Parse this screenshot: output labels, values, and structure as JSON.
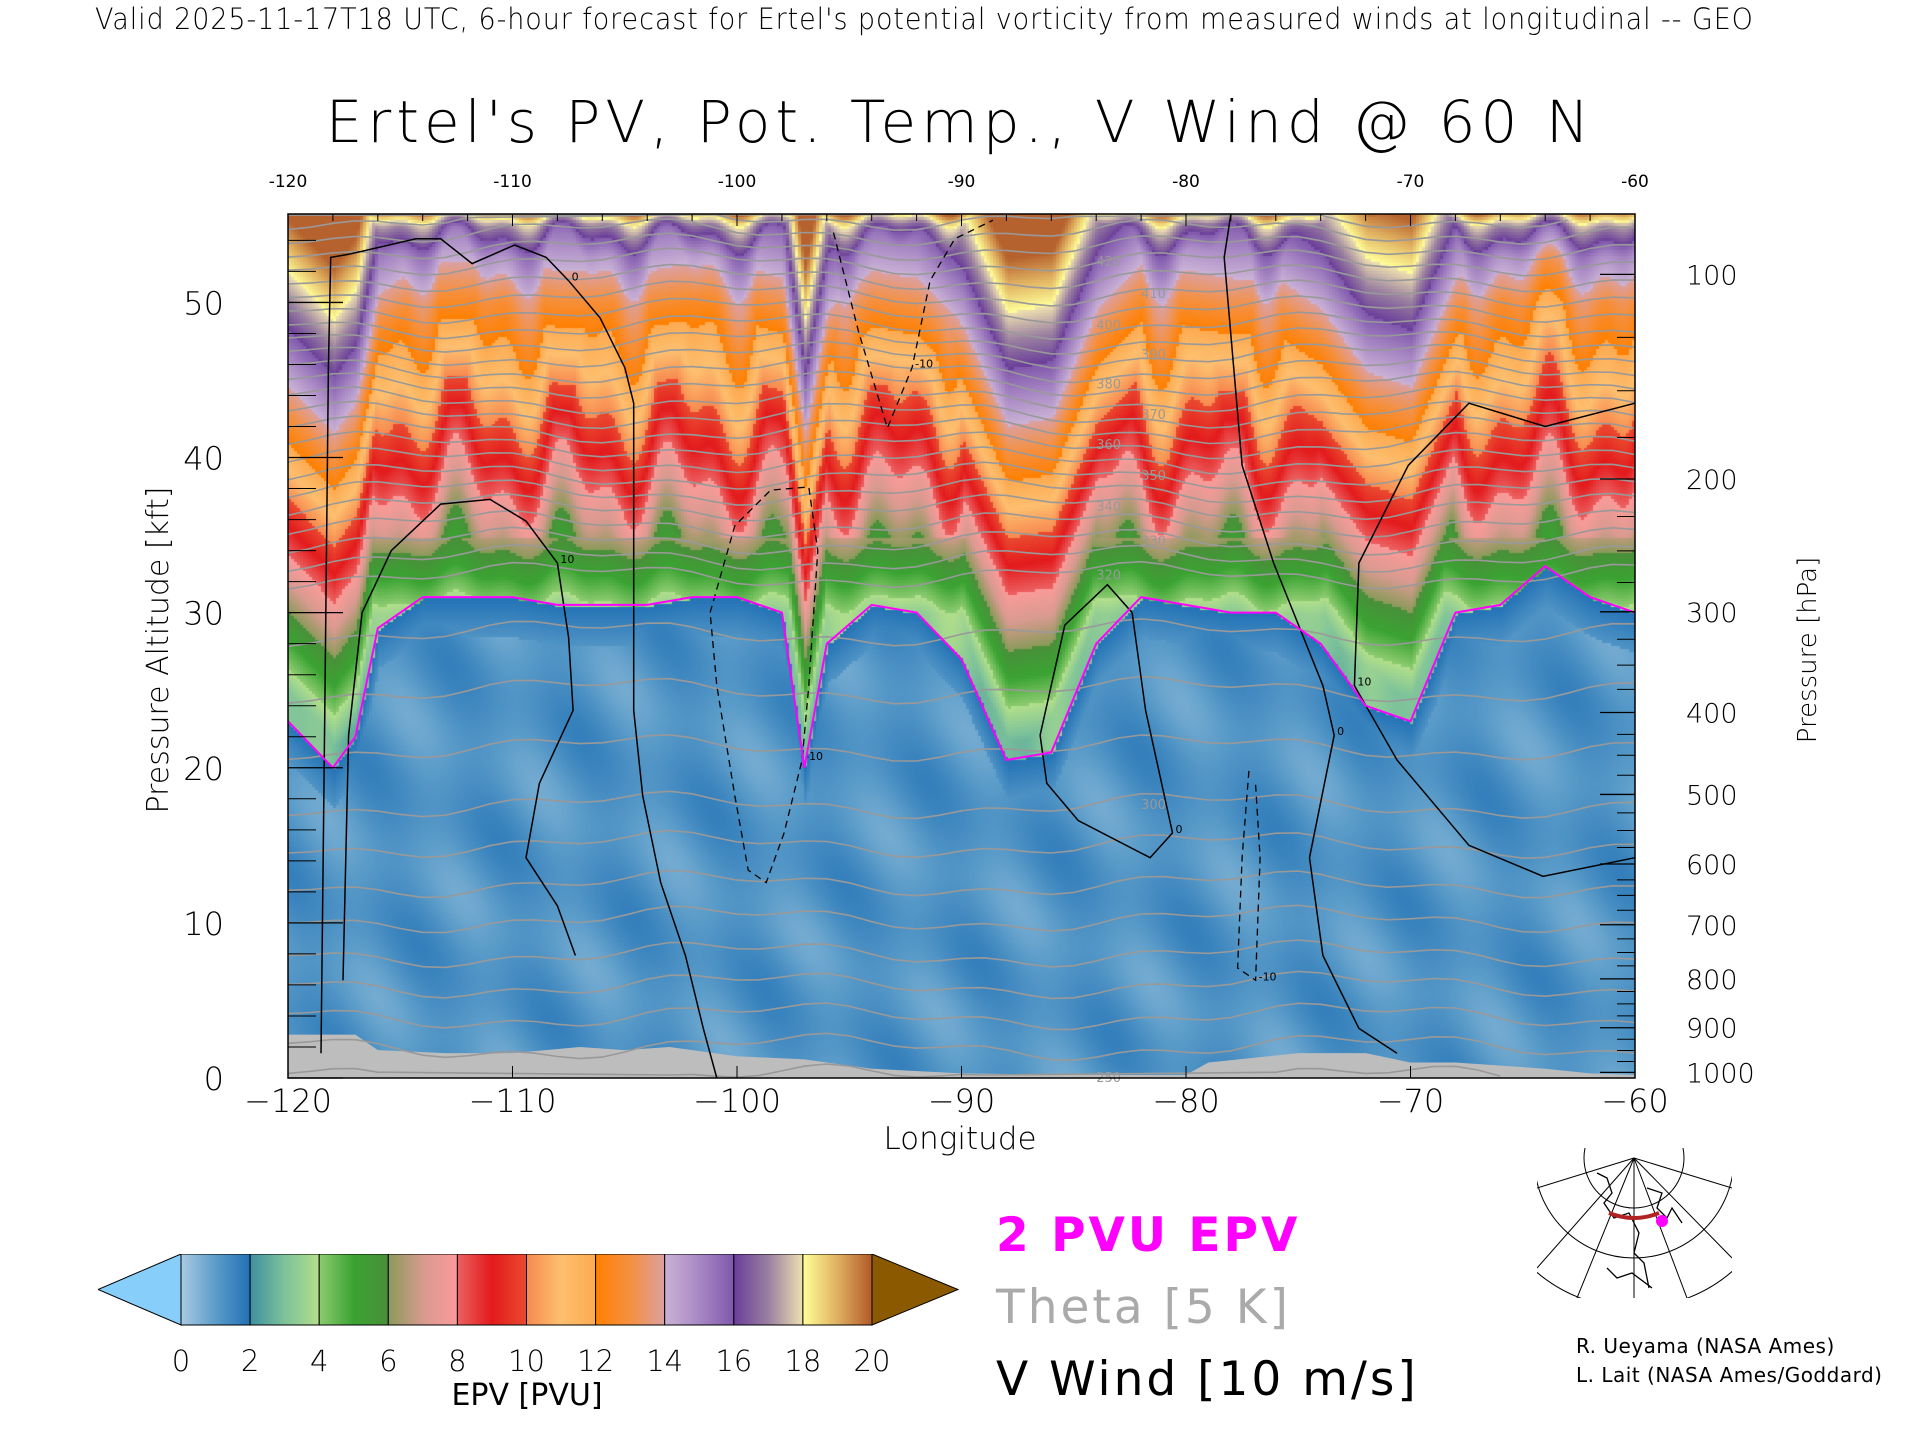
{
  "header": {
    "valid_line": "Valid 2025-11-17T18 UTC, 6-hour forecast for Ertel's potential vorticity from measured winds at longitudinal -- GEO",
    "title": "Ertel's PV, Pot. Temp., V Wind @ 60 N"
  },
  "chart_data": {
    "type": "heatmap",
    "title": "Ertel's PV, Pot. Temp., V Wind @ 60 N",
    "xlabel": "Longitude",
    "ylabel": "Pressure Altitude [kft]",
    "y2label": "Pressure [hPa]",
    "xlim": [
      -120,
      -60
    ],
    "ylim": [
      0,
      55.7
    ],
    "x_ticks": [
      "-120",
      "-110",
      "-100",
      "-90",
      "-80",
      "-70",
      "-60"
    ],
    "x_tick_values": [
      -120,
      -110,
      -100,
      -90,
      -80,
      -70,
      -60
    ],
    "y_ticks": [
      "0",
      "10",
      "20",
      "30",
      "40",
      "50"
    ],
    "y_tick_values": [
      0,
      10,
      20,
      30,
      40,
      50
    ],
    "pressure_ticks": [
      "100",
      "200",
      "300",
      "400",
      "500",
      "600",
      "700",
      "800",
      "900",
      "1000"
    ],
    "pressure_tick_values": [
      100,
      200,
      300,
      400,
      500,
      600,
      700,
      800,
      900,
      1000
    ],
    "epv_colorbar": {
      "label": "EPV [PVU]",
      "ticks": [
        "0",
        "2",
        "4",
        "6",
        "8",
        "10",
        "12",
        "14",
        "16",
        "18",
        "20"
      ],
      "under_color": "#87cefa",
      "over_color": "#8b5a00",
      "bins": [
        [
          "#a9cbe2",
          "#5b9cc9",
          "#2171b5"
        ],
        [
          "#3f8f9f",
          "#7dc29a",
          "#b2df8a"
        ],
        [
          "#8ccb70",
          "#3aa332",
          "#4a8f3a"
        ],
        [
          "#8a9a5a",
          "#d89a90",
          "#fb9a99"
        ],
        [
          "#ec6060",
          "#e31a1c",
          "#ea4a30"
        ],
        [
          "#f78a50",
          "#fdbf6f",
          "#fdaa50"
        ],
        [
          "#ff8000",
          "#f59040",
          "#dca0a0"
        ],
        [
          "#cab2d6",
          "#a888c4",
          "#8058ac"
        ],
        [
          "#6a3d9a",
          "#9a80a0",
          "#eee0b0"
        ],
        [
          "#ffff99",
          "#e0b060",
          "#b15928"
        ]
      ]
    },
    "tropopause_2pvu_kft": {
      "lon": [
        -120,
        -118,
        -117,
        -116,
        -114,
        -112,
        -110,
        -108,
        -106,
        -104,
        -102,
        -100,
        -98,
        -97,
        -96,
        -94,
        -92,
        -90,
        -88,
        -86,
        -84,
        -82,
        -80,
        -78,
        -76,
        -74,
        -72,
        -70,
        -68,
        -66,
        -64,
        -62,
        -60
      ],
      "alt": [
        23,
        20,
        22,
        29,
        31,
        31,
        31,
        30.5,
        30.5,
        30.5,
        31,
        31,
        30,
        20,
        28,
        30.5,
        30,
        27,
        20.5,
        21,
        28,
        31,
        30.5,
        30,
        30,
        28,
        24,
        23,
        30,
        30.5,
        33,
        31,
        30
      ]
    },
    "epv_profile_above_tropopause": [
      [
        25,
        3
      ],
      [
        30,
        3.5
      ],
      [
        35,
        6.5
      ],
      [
        40,
        8.8
      ],
      [
        45,
        10.8
      ],
      [
        50,
        12.6
      ],
      [
        53,
        14.5
      ],
      [
        55,
        16.8
      ],
      [
        55.7,
        18.5
      ]
    ],
    "epv_troposphere_range": [
      0.3,
      1.9
    ],
    "theta_reference_kft": [
      [
        260,
        0
      ],
      [
        280,
        8
      ],
      [
        290,
        12.5
      ],
      [
        300,
        17.6
      ],
      [
        310,
        25
      ],
      [
        320,
        32.4
      ],
      [
        340,
        36.8
      ],
      [
        360,
        40.8
      ],
      [
        380,
        44.7
      ],
      [
        400,
        48.5
      ],
      [
        420,
        52.6
      ],
      [
        440,
        56.5
      ]
    ],
    "theta_labels": [
      "250",
      "300",
      "320",
      "330",
      "340",
      "350",
      "360",
      "370",
      "380",
      "390",
      "400",
      "410",
      "420"
    ],
    "theta_interval": 5,
    "terrain_kft": {
      "lon": [
        -120,
        -117,
        -116,
        -113,
        -110,
        -107,
        -105,
        -103,
        -100,
        -97,
        -94,
        -90,
        -85,
        -80,
        -79,
        -75,
        -72,
        -70,
        -68,
        -64,
        -62,
        -60
      ],
      "alt": [
        2.8,
        2.8,
        1.8,
        1.6,
        1.6,
        2.0,
        1.8,
        2.0,
        1.4,
        1.2,
        0.6,
        0.3,
        0.2,
        0.2,
        1.0,
        1.6,
        1.6,
        1.0,
        1.0,
        0.6,
        0.3,
        0.2
      ]
    },
    "vwind_contours": [
      {
        "level": "0",
        "dashed": false,
        "points": [
          [
            -118.53,
            1.6
          ],
          [
            -118.36,
            23.7
          ],
          [
            -118.2,
            45.8
          ],
          [
            -118.1,
            52.9
          ],
          [
            -117.3,
            53.1
          ],
          [
            -114.3,
            54.1
          ],
          [
            -113.2,
            54.1
          ],
          [
            -111.8,
            52.5
          ],
          [
            -109.9,
            53.7
          ],
          [
            -108.5,
            52.9
          ],
          [
            -107.5,
            51.4
          ],
          [
            -106.1,
            49.0
          ],
          [
            -105.0,
            45.8
          ],
          [
            -104.6,
            43.5
          ],
          [
            -104.6,
            23.7
          ],
          [
            -104.2,
            18.2
          ],
          [
            -103.4,
            12.6
          ],
          [
            -102.3,
            7.9
          ],
          [
            -101.5,
            3.2
          ],
          [
            -100.9,
            0
          ]
        ]
      },
      {
        "level": "10",
        "dashed": false,
        "points": [
          [
            -117.55,
            6.3
          ],
          [
            -117.3,
            22.1
          ],
          [
            -116.7,
            30.0
          ],
          [
            -115.4,
            34.0
          ],
          [
            -113.2,
            37.0
          ],
          [
            -111.0,
            37.3
          ],
          [
            -109.4,
            35.9
          ],
          [
            -108.0,
            33.2
          ],
          [
            -107.5,
            28.4
          ],
          [
            -107.3,
            23.7
          ],
          [
            -108.8,
            19.0
          ],
          [
            -109.4,
            14.2
          ],
          [
            -108.0,
            11.1
          ],
          [
            -107.2,
            7.9
          ]
        ]
      },
      {
        "level": "-10",
        "dashed": true,
        "points": [
          [
            -101.2,
            30.0
          ],
          [
            -100.1,
            35.6
          ],
          [
            -98.5,
            37.9
          ],
          [
            -96.8,
            38.1
          ],
          [
            -96.4,
            34.0
          ],
          [
            -96.8,
            25.3
          ],
          [
            -97.1,
            20.5
          ],
          [
            -97.9,
            15.8
          ],
          [
            -98.7,
            12.6
          ],
          [
            -99.5,
            13.4
          ],
          [
            -100.1,
            18.2
          ],
          [
            -100.9,
            25.3
          ],
          [
            -101.2,
            30.0
          ]
        ]
      },
      {
        "level": "-10",
        "dashed": true,
        "points": [
          [
            -95.7,
            54.5
          ],
          [
            -94.6,
            48.2
          ],
          [
            -93.3,
            41.9
          ],
          [
            -92.2,
            45.8
          ],
          [
            -91.4,
            51.4
          ],
          [
            -90.3,
            54.1
          ],
          [
            -88.6,
            55.3
          ]
        ]
      },
      {
        "level": "0",
        "dashed": false,
        "points": [
          [
            -78.0,
            55.7
          ],
          [
            -78.3,
            52.9
          ],
          [
            -77.5,
            39.5
          ],
          [
            -76.1,
            33.2
          ],
          [
            -73.9,
            25.3
          ],
          [
            -73.4,
            22.1
          ],
          [
            -74.5,
            14.2
          ],
          [
            -73.9,
            7.9
          ],
          [
            -72.3,
            3.2
          ],
          [
            -70.6,
            1.6
          ]
        ]
      },
      {
        "level": "10",
        "dashed": false,
        "points": [
          [
            -60,
            43.5
          ],
          [
            -64,
            42
          ],
          [
            -67.4,
            43.5
          ],
          [
            -70.1,
            39.5
          ],
          [
            -72.3,
            33.2
          ],
          [
            -72.5,
            25.3
          ],
          [
            -70.6,
            20.5
          ],
          [
            -67.4,
            15.0
          ],
          [
            -64.1,
            13.0
          ],
          [
            -60,
            14.2
          ]
        ]
      },
      {
        "level": "0",
        "dashed": false,
        "points": [
          [
            -86.5,
            22.1
          ],
          [
            -85.4,
            29.2
          ],
          [
            -83.5,
            31.8
          ],
          [
            -82.4,
            30.0
          ],
          [
            -81.8,
            23.7
          ],
          [
            -80.6,
            15.8
          ],
          [
            -81.6,
            14.2
          ],
          [
            -84.8,
            16.6
          ],
          [
            -86.2,
            19.0
          ],
          [
            -86.5,
            22.1
          ]
        ]
      },
      {
        "level": "-10",
        "dashed": true,
        "points": [
          [
            -77.2,
            19.8
          ],
          [
            -77.5,
            14.2
          ],
          [
            -77.7,
            7.1
          ],
          [
            -76.9,
            6.3
          ],
          [
            -76.7,
            14.2
          ],
          [
            -76.9,
            18.9
          ]
        ]
      }
    ],
    "legend": {
      "pvu_line": "2 PVU EPV",
      "pvu_color": "#ff00ff",
      "theta": "Theta [5 K]",
      "theta_color": "#aaaaaa",
      "wind": "V Wind [10 m/s]"
    }
  },
  "credits": {
    "line1": "R. Ueyama (NASA Ames)",
    "line2": "L. Lait (NASA Ames/Goddard)"
  },
  "locator_map": {
    "track_color": "#b22222",
    "marker_color": "#ff00ff"
  }
}
